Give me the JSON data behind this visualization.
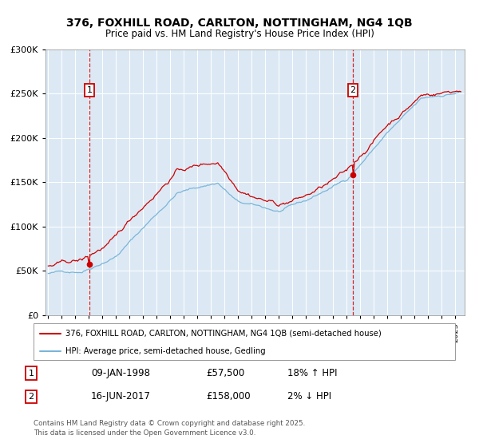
{
  "title": "376, FOXHILL ROAD, CARLTON, NOTTINGHAM, NG4 1QB",
  "subtitle": "Price paid vs. HM Land Registry's House Price Index (HPI)",
  "legend_line1": "376, FOXHILL ROAD, CARLTON, NOTTINGHAM, NG4 1QB (semi-detached house)",
  "legend_line2": "HPI: Average price, semi-detached house, Gedling",
  "footnote": "Contains HM Land Registry data © Crown copyright and database right 2025.\nThis data is licensed under the Open Government Licence v3.0.",
  "sale1_label": "1",
  "sale1_date": "09-JAN-1998",
  "sale1_price": "£57,500",
  "sale1_hpi": "18% ↑ HPI",
  "sale2_label": "2",
  "sale2_date": "16-JUN-2017",
  "sale2_price": "£158,000",
  "sale2_hpi": "2% ↓ HPI",
  "hpi_color": "#7ab5d8",
  "price_color": "#cc0000",
  "marker_color": "#cc0000",
  "sale1_x": 1998.04,
  "sale1_y": 57500,
  "sale2_x": 2017.46,
  "sale2_y": 158000,
  "vline1_x": 1998.04,
  "vline2_x": 2017.46,
  "ylim": [
    0,
    300000
  ],
  "yticks": [
    0,
    50000,
    100000,
    150000,
    200000,
    250000,
    300000
  ],
  "xlim_start": 1994.8,
  "xlim_end": 2025.7,
  "background_color": "#dce9f5",
  "fig_bg": "#ffffff"
}
